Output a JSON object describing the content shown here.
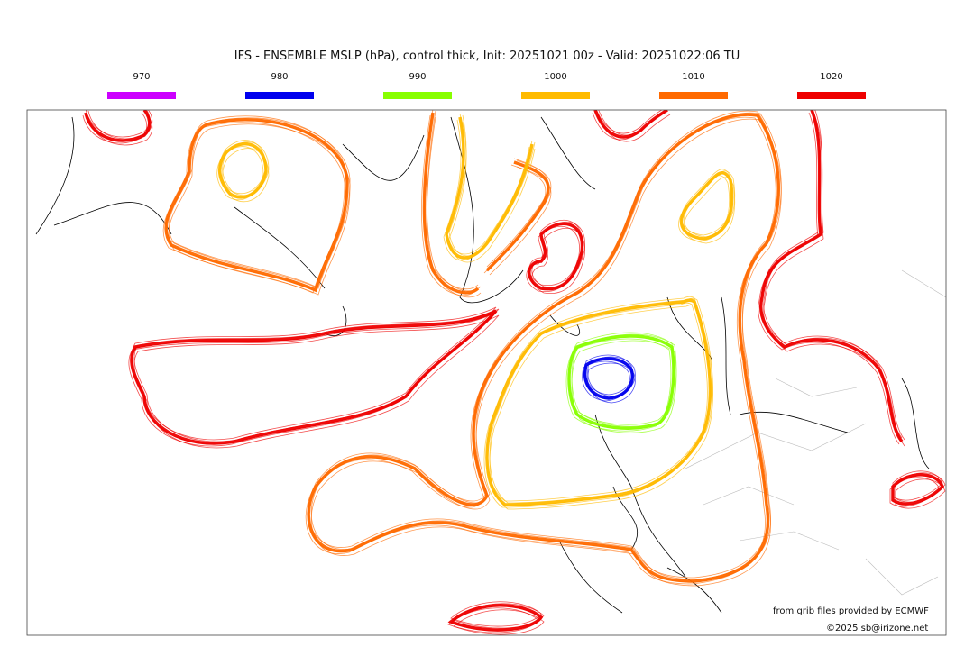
{
  "title": "IFS - ENSEMBLE MSLP (hPa), control thick, Init: 20251021 00z - Valid: 20251022:06 TU",
  "legend": [
    {
      "label": "970",
      "color": "#cc00ff"
    },
    {
      "label": "980",
      "color": "#0000ee"
    },
    {
      "label": "990",
      "color": "#88ff00"
    },
    {
      "label": "1000",
      "color": "#ffbb00"
    },
    {
      "label": "1010",
      "color": "#ff6a00"
    },
    {
      "label": "1020",
      "color": "#ee0000"
    }
  ],
  "credits": {
    "source": "from grib files provided by ECMWF",
    "copyright": "©2025 sb@irizone.net"
  }
}
